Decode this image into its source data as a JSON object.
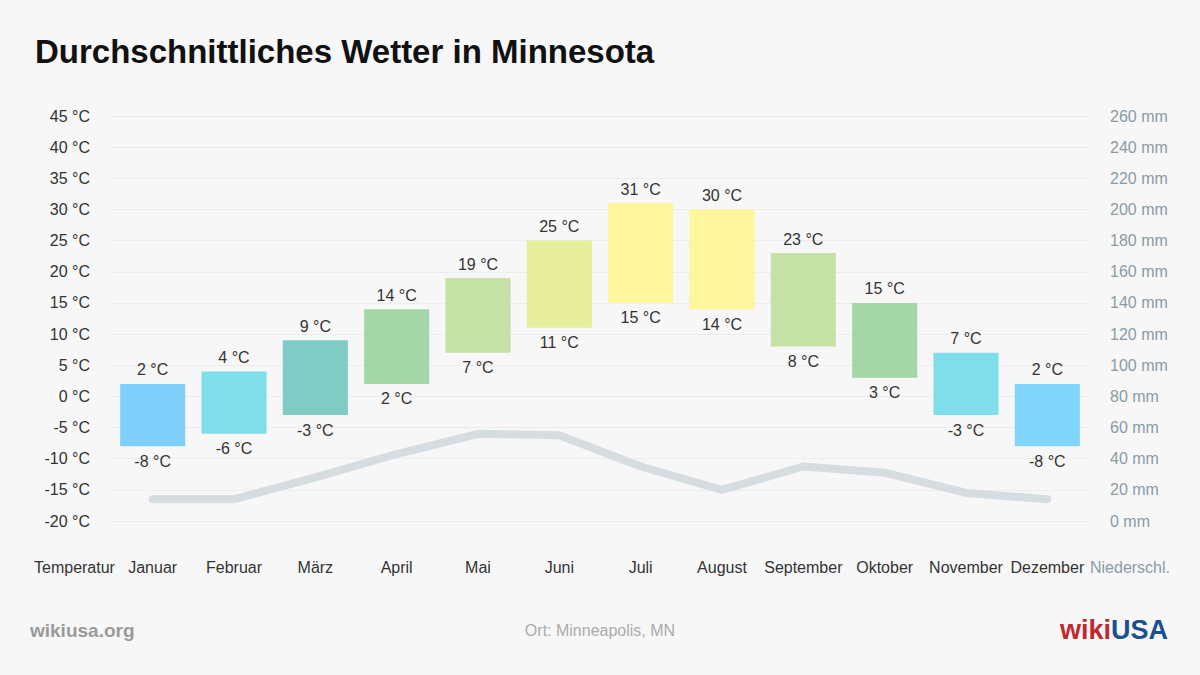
{
  "chart_data": {
    "type": "bar",
    "title": "Durchschnittliches Wetter in Minnesota",
    "ylabel": "Temperatur",
    "y2label": "Niederschl.",
    "source": "wikiusa.org",
    "location": "Ort: Minneapolis, MN",
    "logo": [
      "wiki",
      "USA"
    ],
    "logo_colors": [
      "#c0282e",
      "#1b4f8f"
    ],
    "categories": [
      "Januar",
      "Februar",
      "März",
      "April",
      "Mai",
      "Juni",
      "Juli",
      "August",
      "September",
      "Oktober",
      "November",
      "Dezember"
    ],
    "grid": true,
    "ylim": [
      -20,
      45
    ],
    "yticks": [
      {
        "value": -20,
        "label": "-20 °C"
      },
      {
        "value": -15,
        "label": "-15 °C"
      },
      {
        "value": -10,
        "label": "-10 °C"
      },
      {
        "value": -5,
        "label": "-5 °C"
      },
      {
        "value": 0,
        "label": "0 °C"
      },
      {
        "value": 5,
        "label": "5 °C"
      },
      {
        "value": 10,
        "label": "10 °C"
      },
      {
        "value": 15,
        "label": "15 °C"
      },
      {
        "value": 20,
        "label": "20 °C"
      },
      {
        "value": 25,
        "label": "25 °C"
      },
      {
        "value": 30,
        "label": "30 °C"
      },
      {
        "value": 35,
        "label": "35 °C"
      },
      {
        "value": 40,
        "label": "40 °C"
      },
      {
        "value": 45,
        "label": "45 °C"
      }
    ],
    "y2lim": [
      0,
      260
    ],
    "y2ticks": [
      {
        "value": 0,
        "label": "0 mm"
      },
      {
        "value": 20,
        "label": "20 mm"
      },
      {
        "value": 40,
        "label": "40 mm"
      },
      {
        "value": 60,
        "label": "60 mm"
      },
      {
        "value": 80,
        "label": "80 mm"
      },
      {
        "value": 100,
        "label": "100 mm"
      },
      {
        "value": 120,
        "label": "120 mm"
      },
      {
        "value": 140,
        "label": "140 mm"
      },
      {
        "value": 160,
        "label": "160 mm"
      },
      {
        "value": 180,
        "label": "180 mm"
      },
      {
        "value": 200,
        "label": "200 mm"
      },
      {
        "value": 220,
        "label": "220 mm"
      },
      {
        "value": 240,
        "label": "240 mm"
      },
      {
        "value": 260,
        "label": "260 mm"
      }
    ],
    "series": [
      {
        "type": "bar",
        "axis": "y",
        "data_labels": true,
        "low": [
          -8,
          -6,
          -3,
          2,
          7,
          11,
          15,
          14,
          8,
          3,
          -3,
          -8
        ],
        "high": [
          2,
          4,
          9,
          14,
          19,
          25,
          31,
          30,
          23,
          15,
          7,
          2
        ],
        "low_labels": [
          "-8 °C",
          "-6 °C",
          "-3 °C",
          "2 °C",
          "7 °C",
          "11 °C",
          "15 °C",
          "14 °C",
          "8 °C",
          "3 °C",
          "-3 °C",
          "-8 °C"
        ],
        "high_labels": [
          "2 °C",
          "4 °C",
          "9 °C",
          "14 °C",
          "19 °C",
          "25 °C",
          "31 °C",
          "30 °C",
          "23 °C",
          "15 °C",
          "7 °C",
          "2 °C"
        ],
        "colors": [
          "#80cffa",
          "#80deea",
          "#80cbc4",
          "#a5d6a7",
          "#c5e1a5",
          "#e6ee9c",
          "#fff59d",
          "#fff59d",
          "#c5e1a5",
          "#a5d6a7",
          "#80deea",
          "#81d4fa"
        ]
      },
      {
        "type": "line",
        "axis": "y2",
        "color": "#d5dde1",
        "values": [
          14,
          14,
          28,
          43,
          56,
          55,
          35,
          20,
          35,
          31,
          18,
          14
        ]
      }
    ]
  }
}
